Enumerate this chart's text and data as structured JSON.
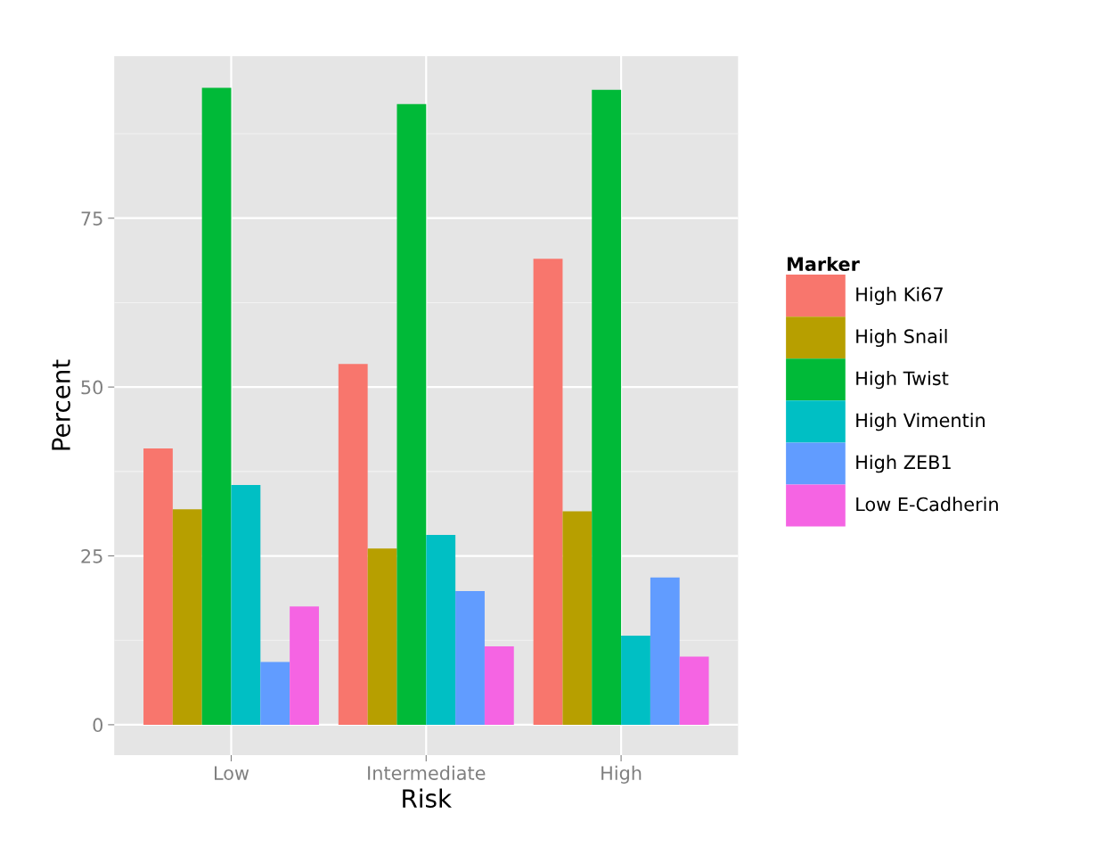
{
  "chart_data": {
    "type": "bar",
    "xlabel": "Risk",
    "ylabel": "Percent",
    "legend_title": "Marker",
    "categories": [
      "Low",
      "Intermediate",
      "High"
    ],
    "series": [
      {
        "name": "High Ki67",
        "color": "#f8766d",
        "values": [
          40.9,
          53.4,
          69.0
        ]
      },
      {
        "name": "High Snail",
        "color": "#b79f00",
        "values": [
          31.9,
          26.1,
          31.6
        ]
      },
      {
        "name": "High Twist",
        "color": "#00ba38",
        "values": [
          94.3,
          91.9,
          94.0
        ]
      },
      {
        "name": "High Vimentin",
        "color": "#00bfc4",
        "values": [
          35.5,
          28.1,
          13.2
        ]
      },
      {
        "name": "High ZEB1",
        "color": "#619cff",
        "values": [
          9.3,
          19.8,
          21.8
        ]
      },
      {
        "name": "Low E-Cadherin",
        "color": "#f564e3",
        "values": [
          17.5,
          11.6,
          10.1
        ]
      }
    ],
    "ylim": [
      -4.5,
      99
    ],
    "yticks": [
      0,
      25,
      50,
      75
    ],
    "grid": true,
    "legend": "right"
  }
}
